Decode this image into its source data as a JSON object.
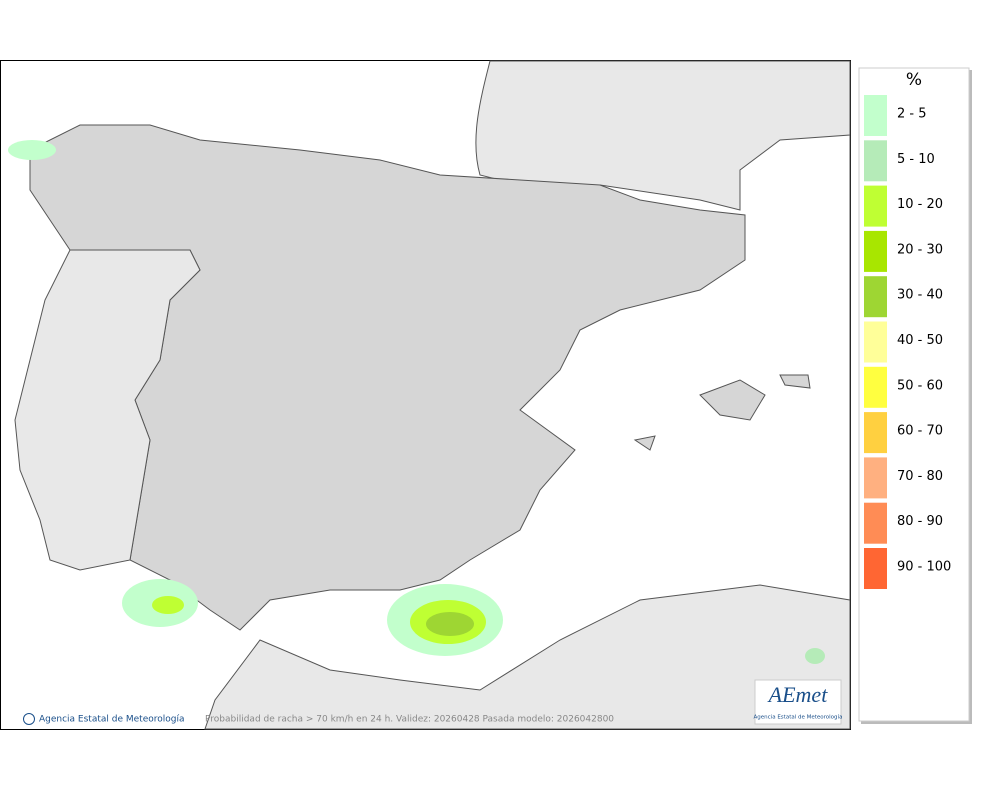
{
  "legend": {
    "title": "%",
    "items": [
      {
        "label": "2 - 5",
        "color": "#c2ffcc"
      },
      {
        "label": "5 - 10",
        "color": "#b5ebb8"
      },
      {
        "label": "10 - 20",
        "color": "#bfff33"
      },
      {
        "label": "20 - 30",
        "color": "#a8e600"
      },
      {
        "label": "30 - 40",
        "color": "#9ed633"
      },
      {
        "label": "40 - 50",
        "color": "#ffff99"
      },
      {
        "label": "50 - 60",
        "color": "#ffff40"
      },
      {
        "label": "60 - 70",
        "color": "#ffd040"
      },
      {
        "label": "70 - 80",
        "color": "#ffb080"
      },
      {
        "label": "80 - 90",
        "color": "#ff8c55"
      },
      {
        "label": "90 - 100",
        "color": "#ff6633"
      }
    ]
  },
  "footer": {
    "agency": "Agencia Estatal de Meteorología",
    "caption": "Probabilidad de racha > 70 km/h en 24 h. Validez: 20260428 Pasada modelo: 2026042800"
  },
  "logo": {
    "name": "AEmet",
    "subtitle": "Agencia Estatal de Meteorología"
  }
}
